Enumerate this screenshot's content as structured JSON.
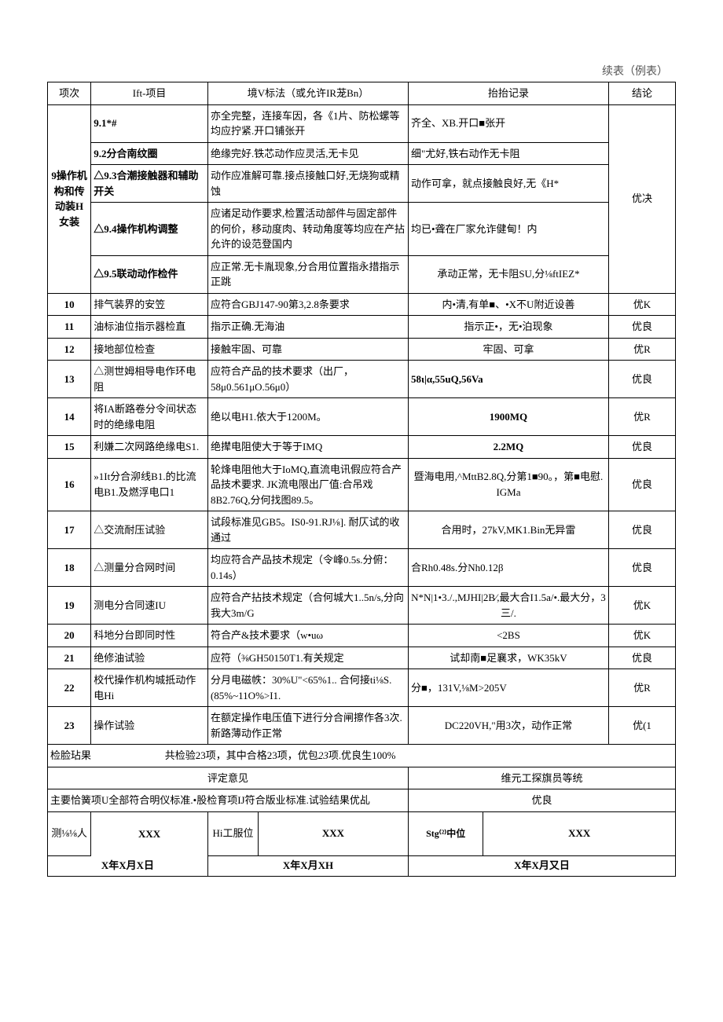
{
  "header_label": "续表（例表）",
  "columns": {
    "c1": "项次",
    "c2": "Ift-项目",
    "c3": "境V标法（或允许IR茏Bn）",
    "c4": "抬抬记录",
    "c5": "结论"
  },
  "group9": {
    "idx": "9操作机构和传动装H女装",
    "result": "优决",
    "rows": [
      {
        "id": "9.1*#",
        "std": "亦全完整，连接车因，各《1片、防松螺等均应拧紧.开口铺张开",
        "rec": "齐全、XB.开口■张开"
      },
      {
        "id": "9.2分合南纹圈",
        "std": "绝缘完好.铁芯动作应灵活,无卡见",
        "rec": "细\"尤好,铁右动作无卡阻"
      },
      {
        "id": "△9.3合潮接触器和辅助开关",
        "std": "动作应准解可靠.接点接触口好,无烧狗或精蚀",
        "rec": "动作可拿，就点接触良好,无《H*"
      },
      {
        "id": "△9.4操作机构调整",
        "std": "应诸足动作要求,检置活动部件与固定部件的何价，移动度肉、转动角度等均应在产拈允许的设范登国内",
        "rec": "均已•聋在厂家允诈健甸！内"
      },
      {
        "id": "△9.5联动动作检件",
        "std": "应正常.无卡胤现象,分合用位置指永措指示正跳",
        "rec": "承动正常，无卡阻SU,分⅛ftIEZ*"
      }
    ]
  },
  "rows": [
    {
      "n": "10",
      "item": "排气装界的安笠",
      "std": "应符合GBJ147-90第3,2.8条要求",
      "rec": "内•清,有单■、•X不U附近设善",
      "res": "优K"
    },
    {
      "n": "11",
      "item": "油标油位指示器检直",
      "std": "指示正确.无海油",
      "rec": "指示正•，无•泊现象",
      "res": "优良"
    },
    {
      "n": "12",
      "item": "接地部位检查",
      "std": "接触牢固、可靠",
      "rec": "牢固、可拿",
      "res": "优R"
    },
    {
      "n": "13",
      "item": "△测世姆相导电作环电阻",
      "std": "应符合产品的技术要求（出厂，58μ0.561μO.56μ0）",
      "rec": "58ι|α,55uQ,56Va",
      "res": "优良"
    },
    {
      "n": "14",
      "item": "将IA断路卷分令间状态时的绝缘电阻",
      "std": "绝以电H1.依大于1200M。",
      "rec": "1900MQ",
      "res": "优R"
    },
    {
      "n": "15",
      "item": "利嫌二次网路绝缘电S1.",
      "std": "绝撵电阻使大于等于IMQ",
      "rec": "2.2MQ",
      "res": "优良"
    },
    {
      "n": "16",
      "item": "»1It分合泖线B1.的比流电B1.及燃浮电口1",
      "std": "轮烽电阻他大于IoMQ,直流电讯假应符合产品技术要求.\nJK流电限出厂值:合吊戏8B2.76Q,分何找图89.5。",
      "rec": "暨海电用,^MttB2.8Q,分第1■90。，第■电慰.\nIGMa",
      "res": "优良"
    },
    {
      "n": "17",
      "item": "△交流耐压试验",
      "std": "试段标准见GB5。IS0-91.RJ⅛].\n耐仄试的收通过",
      "rec": "合用时，27kV,MK1.Bin无异雷",
      "res": "优良"
    },
    {
      "n": "18",
      "item": "△测量分合网时间",
      "std": "均应符合产品技术规定（令峰0.5s.分俯：0.14s）",
      "rec": "合Rh0.48s.分Nh0.12β",
      "res": "优良"
    },
    {
      "n": "19",
      "item": "测电分合同速IU",
      "std": "应符合产拈技术规定（合何城大1..5n/s,分向我大3m/G",
      "rec": "N*N|1•3./.,MJHI|2B∕,最大合I1.5a/•.最大分，3三/.",
      "res": "优K"
    },
    {
      "n": "20",
      "item": "科地分台即同时性",
      "std": "符合产&技术要求（w•uω",
      "rec": "<2BS",
      "res": "优K"
    },
    {
      "n": "21",
      "item": "绝修油试验",
      "std": "应符（⅜GH50150T1.有关规定",
      "rec": "试却南■足襄求，WK35kV",
      "res": "优良"
    },
    {
      "n": "22",
      "item": "校代操作机构城抵动作电Hi",
      "std": "分月电磁帙：30%U\"<65%1..\n合何接ti⅛S.(85%~11O%>I1.",
      "rec": "分■，131V,⅛M>205V",
      "res": "优R"
    },
    {
      "n": "23",
      "item": "操作试验",
      "std": "在额定操作电压值下进行分合闸擦作各3次.新路薄动作正常",
      "rec": "DC220VH,\"用3次，动作正常",
      "res": "优(1"
    }
  ],
  "inspection_summary": {
    "label": "检脸玷果",
    "text": "共检验23项，其中合格23项，优包<i>23</i>项.优良生100%"
  },
  "opinion_headers": {
    "left": "评定意见",
    "right": "维元工探旗员等统"
  },
  "opinion_row": {
    "text": "主要恰簧项U全部符合明仪标准.•股检育项IJ符合版业标准.试验结果优乩",
    "grade": "优良"
  },
  "sig": {
    "r1": {
      "l1": "测⅛⅛人",
      "v1": "XXX",
      "l2": "Hi工服位",
      "v2": "XXX",
      "l3": "Stg⁽²⁾中位",
      "v3": "XXX"
    },
    "r2": {
      "d1": "X年X月X日",
      "d2": "X年X月XH",
      "d3": "X年X月又日"
    }
  }
}
